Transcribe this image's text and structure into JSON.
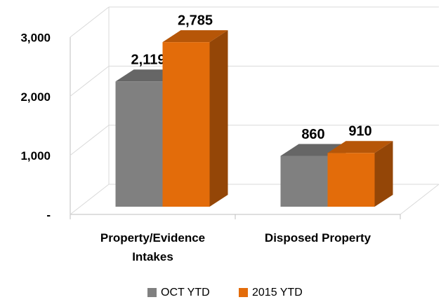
{
  "chart_data": {
    "type": "bar3d",
    "categories": [
      "Property/Evidence Intakes",
      "Disposed Property"
    ],
    "series": [
      {
        "name": "OCT YTD",
        "color": "#808080",
        "values": [
          2119,
          860
        ],
        "value_labels": [
          "2,119",
          "860"
        ]
      },
      {
        "name": "2015 YTD",
        "color": "#e36c0a",
        "values": [
          2785,
          910
        ],
        "value_labels": [
          "2,785",
          "910"
        ]
      }
    ],
    "ylim": [
      0,
      3000
    ],
    "yticks": [
      {
        "value": 0,
        "label": "-"
      },
      {
        "value": 1000,
        "label": "1,000"
      },
      {
        "value": 2000,
        "label": "2,000"
      },
      {
        "value": 3000,
        "label": "3,000"
      }
    ],
    "grid": true,
    "legend": "bottom"
  }
}
